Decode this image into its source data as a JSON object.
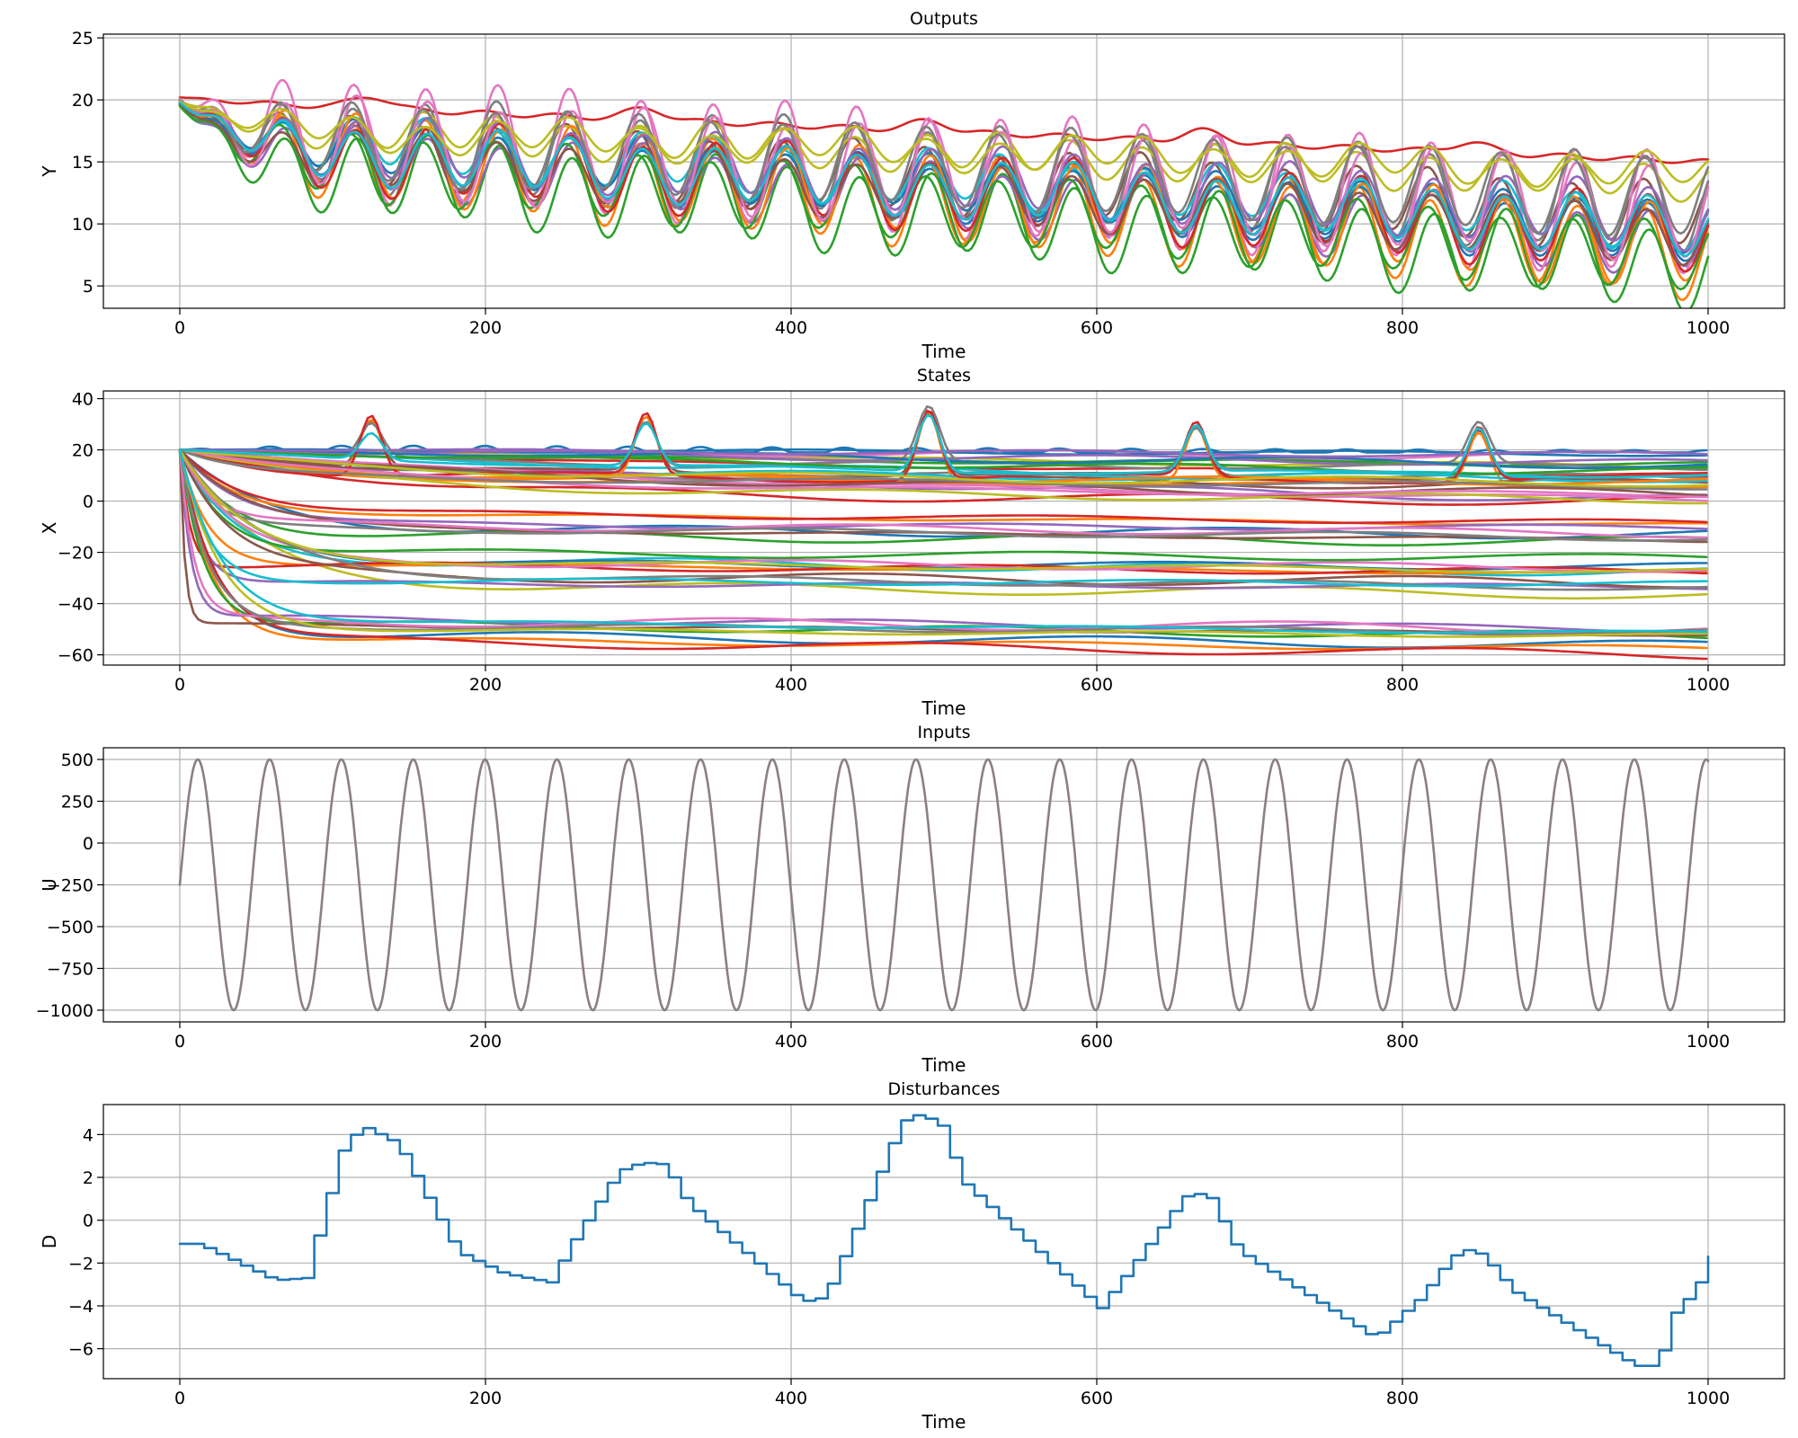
{
  "chart_data": [
    {
      "type": "line",
      "title": "Outputs",
      "xlabel": "Time",
      "ylabel": "Y",
      "xlim": [
        -50,
        1050
      ],
      "ylim": [
        3.2,
        25.3
      ],
      "xticks": [
        0,
        200,
        400,
        600,
        800,
        1000
      ],
      "yticks": [
        5,
        10,
        15,
        20,
        25
      ],
      "grid": true,
      "series_model": {
        "count": 20,
        "colors": [
          "#1f77b4",
          "#ff7f0e",
          "#2ca02c",
          "#d62728",
          "#9467bd",
          "#8c564b",
          "#e377c2",
          "#7f7f7f",
          "#bcbd22",
          "#17becf",
          "#1f77b4",
          "#ff7f0e",
          "#2ca02c",
          "#d62728",
          "#9467bd",
          "#8c564b",
          "#e377c2",
          "#7f7f7f",
          "#bcbd22",
          "#17becf"
        ],
        "start": [
          20,
          19.8,
          19.6,
          20.2,
          19.7,
          19.9,
          20,
          19.8,
          19.9,
          19.7,
          19.6,
          20,
          19.5,
          19.9,
          19.8,
          19.7,
          20.1,
          20,
          19.9,
          19.8
        ],
        "mean_start": [
          16.5,
          16.2,
          14.8,
          19.9,
          15.8,
          16.6,
          17.6,
          16.9,
          18.0,
          17.2,
          16.8,
          16.4,
          15.6,
          16.2,
          16.9,
          15.9,
          16.9,
          17.1,
          17.8,
          16.4
        ],
        "mean_end": [
          9.0,
          7.5,
          6.5,
          15.0,
          8.5,
          10.5,
          10.5,
          11.5,
          13.5,
          10.0,
          9.5,
          8.0,
          7.0,
          9.0,
          10.5,
          9.0,
          11.0,
          12.0,
          14.0,
          9.5
        ],
        "oscillation_amplitude": [
          2.2,
          3.4,
          3.2,
          0.3,
          2.4,
          2.6,
          4.8,
          3.6,
          1.4,
          2.0,
          2.1,
          3.2,
          2.7,
          2.8,
          2.4,
          2.2,
          3.8,
          3.1,
          1.2,
          2.2
        ],
        "period": 47,
        "x_range": [
          0,
          1000
        ]
      }
    },
    {
      "type": "line",
      "title": "States",
      "xlabel": "Time",
      "ylabel": "X",
      "xlim": [
        -50,
        1050
      ],
      "ylim": [
        -64,
        43
      ],
      "xticks": [
        0,
        200,
        400,
        600,
        800,
        1000
      ],
      "yticks": [
        -60,
        -40,
        -20,
        0,
        20,
        40
      ],
      "grid": true,
      "series_model": {
        "count": 60,
        "start": 20,
        "band_ranges": [
          [
            2,
            20
          ],
          [
            -16,
            -4
          ],
          [
            -33,
            -19
          ],
          [
            -58,
            -44
          ]
        ],
        "spike_times": [
          125,
          305,
          490,
          665,
          850
        ],
        "spike_peaks": [
          36,
          34,
          37,
          31,
          31
        ],
        "x_range": [
          0,
          1000
        ]
      }
    },
    {
      "type": "line",
      "title": "Inputs",
      "xlabel": "Time",
      "ylabel": "U",
      "xlim": [
        -50,
        1050
      ],
      "ylim": [
        -1070,
        570
      ],
      "xticks": [
        0,
        200,
        400,
        600,
        800,
        1000
      ],
      "yticks": [
        -1000,
        -750,
        -500,
        -250,
        0,
        250,
        500
      ],
      "grid": true,
      "series": [
        {
          "color": "#8c7f7f",
          "form": "sine",
          "mean": -250,
          "amplitude": 750,
          "period": 47,
          "start_value": -250
        }
      ],
      "x_range": [
        0,
        1000
      ]
    },
    {
      "type": "line",
      "title": "Disturbances",
      "xlabel": "Time",
      "ylabel": "D",
      "xlim": [
        -50,
        1050
      ],
      "ylim": [
        -7.4,
        5.4
      ],
      "xticks": [
        0,
        200,
        400,
        600,
        800,
        1000
      ],
      "yticks": [
        -6,
        -4,
        -2,
        0,
        2,
        4
      ],
      "grid": true,
      "series": [
        {
          "color": "#1f77b4",
          "step": 8,
          "anchors_x": [
            0,
            10,
            60,
            80,
            105,
            115,
            120,
            140,
            180,
            210,
            240,
            255,
            285,
            300,
            315,
            330,
            405,
            420,
            440,
            470,
            480,
            495,
            510,
            600,
            630,
            655,
            670,
            690,
            780,
            810,
            830,
            840,
            850,
            870,
            950,
            965,
            975,
            990,
            1000
          ],
          "anchors_y": [
            -1.1,
            -1.1,
            -2.8,
            -2.7,
            3.5,
            4.2,
            4.3,
            3.6,
            -1.5,
            -2.5,
            -2.9,
            -1.0,
            2.3,
            2.7,
            2.6,
            0.8,
            -3.8,
            -3.6,
            -0.4,
            4.6,
            4.9,
            4.6,
            1.8,
            -4.1,
            -1.3,
            1.1,
            1.3,
            -1.4,
            -5.5,
            -3.6,
            -1.7,
            -1.4,
            -1.6,
            -3.3,
            -6.8,
            -6.8,
            -4.4,
            -3.2,
            -1.7
          ]
        }
      ],
      "x_range": [
        0,
        1000
      ]
    }
  ]
}
